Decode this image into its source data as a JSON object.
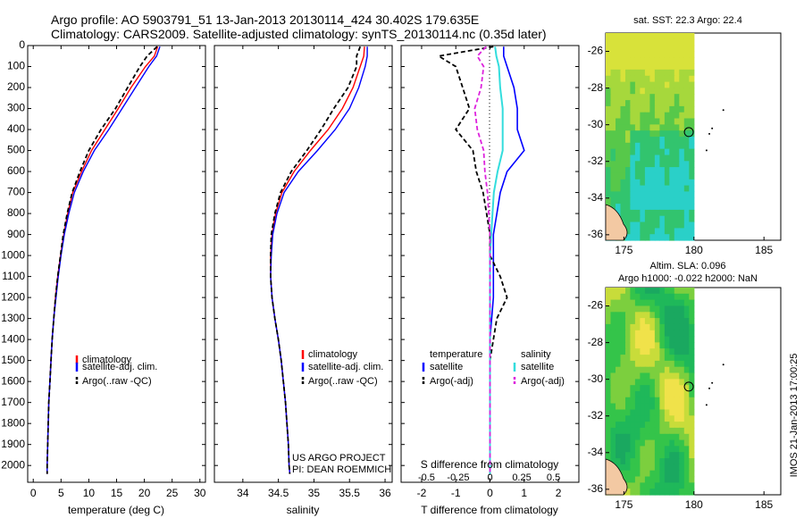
{
  "header": {
    "line1": "Argo profile: AO 5903791_51 13-Jan-2013 20130114_424 30.402S 179.635E",
    "line2": "Climatology: CARS2009. Satellite-adjusted climatology: synTS_20130114.nc (0.35d later)"
  },
  "side_stamp": "IMOS 21-Jan-2013 17:00:25",
  "colors": {
    "climatology": "#ff0000",
    "satellite": "#0000ff",
    "argo": "#000000",
    "sat_salinity": "#33dddd",
    "argo_salinity": "#dd22dd"
  },
  "chart_data": [
    {
      "type": "line",
      "panel": "temperature",
      "xlabel": "temperature (deg C)",
      "xlim": [
        -1,
        31
      ],
      "xticks": [
        0,
        5,
        10,
        15,
        20,
        25,
        30
      ],
      "xticklabels": [
        "0",
        "5",
        "10",
        "15",
        "20",
        "25",
        "30"
      ],
      "ylim": [
        0,
        2080
      ],
      "yticks": [
        0,
        100,
        200,
        300,
        400,
        500,
        600,
        700,
        800,
        900,
        1000,
        1100,
        1200,
        1300,
        1400,
        1500,
        1600,
        1700,
        1800,
        1900,
        2000
      ],
      "yticklabels": [
        "0",
        "100",
        "200",
        "300",
        "400",
        "500",
        "600",
        "700",
        "800",
        "900",
        "1000",
        "1100",
        "1200",
        "1300",
        "1400",
        "1500",
        "1600",
        "1700",
        "1800",
        "1900",
        "2000"
      ],
      "legend": [
        "climatology",
        "satellite-adj. clim.",
        "Argo(..raw -QC)"
      ],
      "depth": [
        5,
        50,
        100,
        200,
        300,
        400,
        500,
        600,
        700,
        800,
        900,
        1000,
        1100,
        1200,
        1300,
        1400,
        1500,
        1600,
        1700,
        1800,
        1900,
        2000,
        2040
      ],
      "series": [
        {
          "name": "climatology",
          "values": [
            22.4,
            21.8,
            20.2,
            17.6,
            15.3,
            12.9,
            10.5,
            8.7,
            7.1,
            6.2,
            5.5,
            4.9,
            4.4,
            4.0,
            3.7,
            3.4,
            3.2,
            3.0,
            2.8,
            2.7,
            2.6,
            2.5,
            2.5
          ]
        },
        {
          "name": "satellite-adj. clim.",
          "values": [
            22.8,
            22.2,
            20.8,
            18.4,
            16.0,
            13.6,
            11.0,
            9.0,
            7.4,
            6.4,
            5.6,
            5.0,
            4.5,
            4.1,
            3.7,
            3.4,
            3.2,
            3.0,
            2.8,
            2.7,
            2.6,
            2.5,
            2.5
          ]
        },
        {
          "name": "Argo(..raw -QC)",
          "values": [
            22.3,
            20.5,
            19.2,
            17.0,
            14.8,
            12.2,
            10.0,
            8.4,
            7.0,
            6.1,
            5.4,
            4.9,
            4.4,
            4.0,
            3.7,
            3.4,
            3.2,
            3.0,
            2.8,
            2.7,
            2.6,
            2.5,
            2.5
          ]
        }
      ]
    },
    {
      "type": "line",
      "panel": "salinity",
      "xlabel": "salinity",
      "xlim": [
        33.6,
        36.1
      ],
      "xticks": [
        34,
        34.5,
        35,
        35.5,
        36
      ],
      "xticklabels": [
        "34",
        "34.5",
        "35",
        "35.5",
        "36"
      ],
      "ylim": [
        0,
        2080
      ],
      "legend": [
        "climatology",
        "satellite-adj. clim.",
        "Argo(..raw -QC)"
      ],
      "depth": [
        5,
        50,
        100,
        200,
        300,
        400,
        500,
        600,
        700,
        800,
        900,
        1000,
        1100,
        1200,
        1300,
        1400,
        1500,
        1600,
        1700,
        1800,
        1900,
        2000,
        2040
      ],
      "series": [
        {
          "name": "climatology",
          "values": [
            35.71,
            35.7,
            35.65,
            35.55,
            35.4,
            35.2,
            34.95,
            34.72,
            34.55,
            34.46,
            34.41,
            34.39,
            34.39,
            34.41,
            34.45,
            34.5,
            34.54,
            34.57,
            34.6,
            34.62,
            34.64,
            34.65,
            34.66
          ]
        },
        {
          "name": "satellite-adj. clim.",
          "values": [
            35.75,
            35.75,
            35.72,
            35.63,
            35.5,
            35.3,
            35.05,
            34.78,
            34.58,
            34.48,
            34.42,
            34.4,
            34.39,
            34.41,
            34.45,
            34.5,
            34.54,
            34.57,
            34.6,
            34.62,
            34.64,
            34.65,
            34.66
          ]
        },
        {
          "name": "Argo(..raw -QC)",
          "values": [
            35.65,
            35.6,
            35.6,
            35.48,
            35.28,
            35.1,
            34.9,
            34.68,
            34.53,
            34.45,
            34.4,
            34.39,
            34.39,
            34.41,
            34.45,
            34.5,
            34.54,
            34.57,
            34.6,
            34.62,
            34.64,
            34.65,
            34.66
          ]
        }
      ],
      "annotation": [
        "US ARGO PROJECT",
        "PI: DEAN ROEMMICH"
      ]
    },
    {
      "type": "line",
      "panel": "difference",
      "xlabel": "T difference from climatology",
      "xlabel2": "S difference from climatology",
      "xlim": [
        -2.6,
        2.6
      ],
      "xticks": [
        -2,
        -1,
        0,
        1,
        2
      ],
      "xticklabels": [
        "-2",
        "-1",
        "0",
        "1",
        "2"
      ],
      "sticks": [
        -0.5,
        -0.25,
        0,
        0.25,
        0.5
      ],
      "sticklabels": [
        "-0.5",
        "-0.25",
        "0",
        "0.25",
        "0.5"
      ],
      "ylim": [
        0,
        2080
      ],
      "legend_groups": [
        "temperature",
        "salinity"
      ],
      "legend": [
        "satellite",
        "Argo(-adj)",
        "satellite",
        "Argo(-adj)"
      ],
      "depth": [
        5,
        50,
        100,
        200,
        300,
        400,
        500,
        600,
        700,
        800,
        900,
        1000,
        1100,
        1200,
        1300,
        1400,
        1500,
        1600,
        1700,
        1800,
        1900,
        2000,
        2040
      ],
      "series": [
        {
          "name": "T satellite",
          "values": [
            0.4,
            0.4,
            0.5,
            0.7,
            0.8,
            0.8,
            1.0,
            0.5,
            0.3,
            0.2,
            0.1,
            0.1,
            0.1,
            0.1,
            0.05,
            0.0,
            0.0,
            0.0,
            0.0,
            0.0,
            0.0,
            0.0,
            0.0
          ]
        },
        {
          "name": "T Argo(-adj)",
          "values": [
            0.1,
            -1.5,
            -1.0,
            -0.8,
            -0.6,
            -1.0,
            -0.5,
            -0.4,
            -0.2,
            -0.1,
            0.0,
            0.0,
            0.3,
            0.5,
            0.2,
            0.1,
            0.0,
            0.0,
            0.0,
            0.0,
            0.0,
            0.0,
            0.0
          ]
        },
        {
          "name": "S satellite",
          "values": [
            0.04,
            0.05,
            0.07,
            0.08,
            0.1,
            0.1,
            0.1,
            0.06,
            0.03,
            0.02,
            0.01,
            0.0,
            0.0,
            0.0,
            0.0,
            0.0,
            0.0,
            0.0,
            0.0,
            0.0,
            0.0,
            0.0,
            0.0
          ]
        },
        {
          "name": "S Argo(-adj)",
          "values": [
            -0.03,
            -0.1,
            -0.05,
            -0.07,
            -0.12,
            -0.1,
            -0.05,
            -0.04,
            -0.02,
            -0.01,
            0.0,
            0.0,
            0.0,
            0.0,
            0.0,
            0.0,
            0.0,
            0.0,
            0.0,
            0.0,
            0.0,
            0.0,
            0.0
          ]
        }
      ]
    }
  ],
  "maps": [
    {
      "title": "sat. SST: 22.3 Argo: 22.4",
      "xticklabels": [
        "175",
        "180",
        "185"
      ],
      "yticklabels": [
        "-26",
        "-28",
        "-30",
        "-32",
        "-34",
        "-36"
      ]
    },
    {
      "title_line1": "Altim. SLA: 0.096",
      "title_line2": "Argo h1000: -0.022 h2000: NaN",
      "xticklabels": [
        "175",
        "180",
        "185"
      ],
      "yticklabels": [
        "-26",
        "-28",
        "-30",
        "-32",
        "-34",
        "-36"
      ]
    }
  ]
}
